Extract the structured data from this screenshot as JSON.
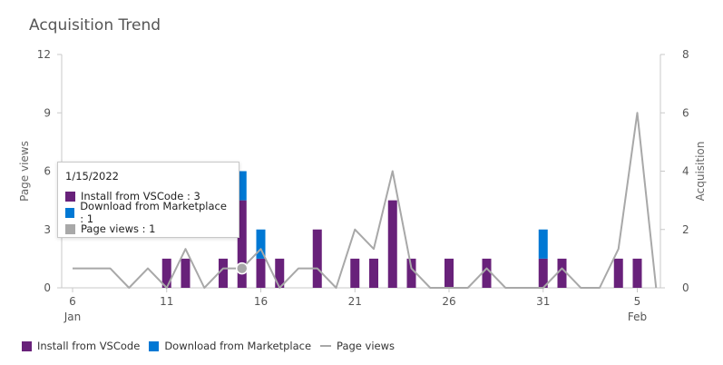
{
  "title": "Acquisition Trend",
  "colors": {
    "install": "#68217a",
    "download": "#0078d4",
    "pageviews": "#a8a8a8",
    "axis": "#888888",
    "grid": "#e6e6e6"
  },
  "chart_data": {
    "type": "bar",
    "x_tick_labels": [
      {
        "day": 6,
        "label": "6",
        "sublabel": "Jan"
      },
      {
        "day": 11,
        "label": "11",
        "sublabel": ""
      },
      {
        "day": 16,
        "label": "16",
        "sublabel": ""
      },
      {
        "day": 21,
        "label": "21",
        "sublabel": ""
      },
      {
        "day": 26,
        "label": "26",
        "sublabel": ""
      },
      {
        "day": 31,
        "label": "31",
        "sublabel": ""
      },
      {
        "day": 36,
        "label": "5",
        "sublabel": "Feb"
      }
    ],
    "left_axis": {
      "label": "Page views",
      "ticks": [
        0,
        3,
        6,
        9,
        12
      ],
      "range": [
        0,
        12
      ]
    },
    "right_axis": {
      "label": "Acquisition",
      "ticks": [
        0,
        2,
        4,
        6,
        8
      ],
      "range": [
        0,
        8
      ]
    },
    "x_range": [
      6,
      37
    ],
    "series": [
      {
        "name": "Install from VSCode",
        "type": "bar",
        "axis": "right",
        "points": [
          {
            "day": 11,
            "value": 1
          },
          {
            "day": 12,
            "value": 1
          },
          {
            "day": 14,
            "value": 1
          },
          {
            "day": 15,
            "value": 3
          },
          {
            "day": 16,
            "value": 1
          },
          {
            "day": 17,
            "value": 1
          },
          {
            "day": 19,
            "value": 2
          },
          {
            "day": 21,
            "value": 1
          },
          {
            "day": 22,
            "value": 1
          },
          {
            "day": 23,
            "value": 3
          },
          {
            "day": 24,
            "value": 1
          },
          {
            "day": 26,
            "value": 1
          },
          {
            "day": 28,
            "value": 1
          },
          {
            "day": 31,
            "value": 1
          },
          {
            "day": 32,
            "value": 1
          },
          {
            "day": 35,
            "value": 1
          },
          {
            "day": 36,
            "value": 1
          }
        ]
      },
      {
        "name": "Download from Marketplace",
        "type": "bar",
        "axis": "right",
        "points": [
          {
            "day": 15,
            "value": 1
          },
          {
            "day": 16,
            "value": 1
          },
          {
            "day": 31,
            "value": 1
          }
        ]
      },
      {
        "name": "Page views",
        "type": "line",
        "axis": "left",
        "points": [
          {
            "day": 6,
            "value": 1
          },
          {
            "day": 7,
            "value": 1
          },
          {
            "day": 8,
            "value": 1
          },
          {
            "day": 9,
            "value": 0
          },
          {
            "day": 10,
            "value": 1
          },
          {
            "day": 11,
            "value": 0
          },
          {
            "day": 12,
            "value": 2
          },
          {
            "day": 13,
            "value": 0
          },
          {
            "day": 14,
            "value": 1
          },
          {
            "day": 15,
            "value": 1
          },
          {
            "day": 16,
            "value": 2
          },
          {
            "day": 17,
            "value": 0
          },
          {
            "day": 18,
            "value": 1
          },
          {
            "day": 19,
            "value": 1
          },
          {
            "day": 20,
            "value": 0
          },
          {
            "day": 21,
            "value": 3
          },
          {
            "day": 22,
            "value": 2
          },
          {
            "day": 23,
            "value": 6
          },
          {
            "day": 24,
            "value": 1
          },
          {
            "day": 25,
            "value": 0
          },
          {
            "day": 26,
            "value": 0
          },
          {
            "day": 27,
            "value": 0
          },
          {
            "day": 28,
            "value": 1
          },
          {
            "day": 29,
            "value": 0
          },
          {
            "day": 30,
            "value": 0
          },
          {
            "day": 31,
            "value": 0
          },
          {
            "day": 32,
            "value": 1
          },
          {
            "day": 33,
            "value": 0
          },
          {
            "day": 34,
            "value": 0
          },
          {
            "day": 35,
            "value": 2
          },
          {
            "day": 36,
            "value": 9
          },
          {
            "day": 37,
            "value": 0
          }
        ]
      }
    ],
    "highlight_day": 15,
    "grid": false,
    "legend_position": "bottom-left"
  },
  "tooltip": {
    "date": "1/15/2022",
    "rows": [
      {
        "text": "Install from VSCode : 3",
        "color": "#68217a"
      },
      {
        "text": "Download from Marketplace : 1",
        "color": "#0078d4"
      },
      {
        "text": "Page views : 1",
        "color": "#a8a8a8"
      }
    ]
  },
  "legend": {
    "install": "Install from VSCode",
    "download": "Download from Marketplace",
    "pageviews": "Page views"
  }
}
